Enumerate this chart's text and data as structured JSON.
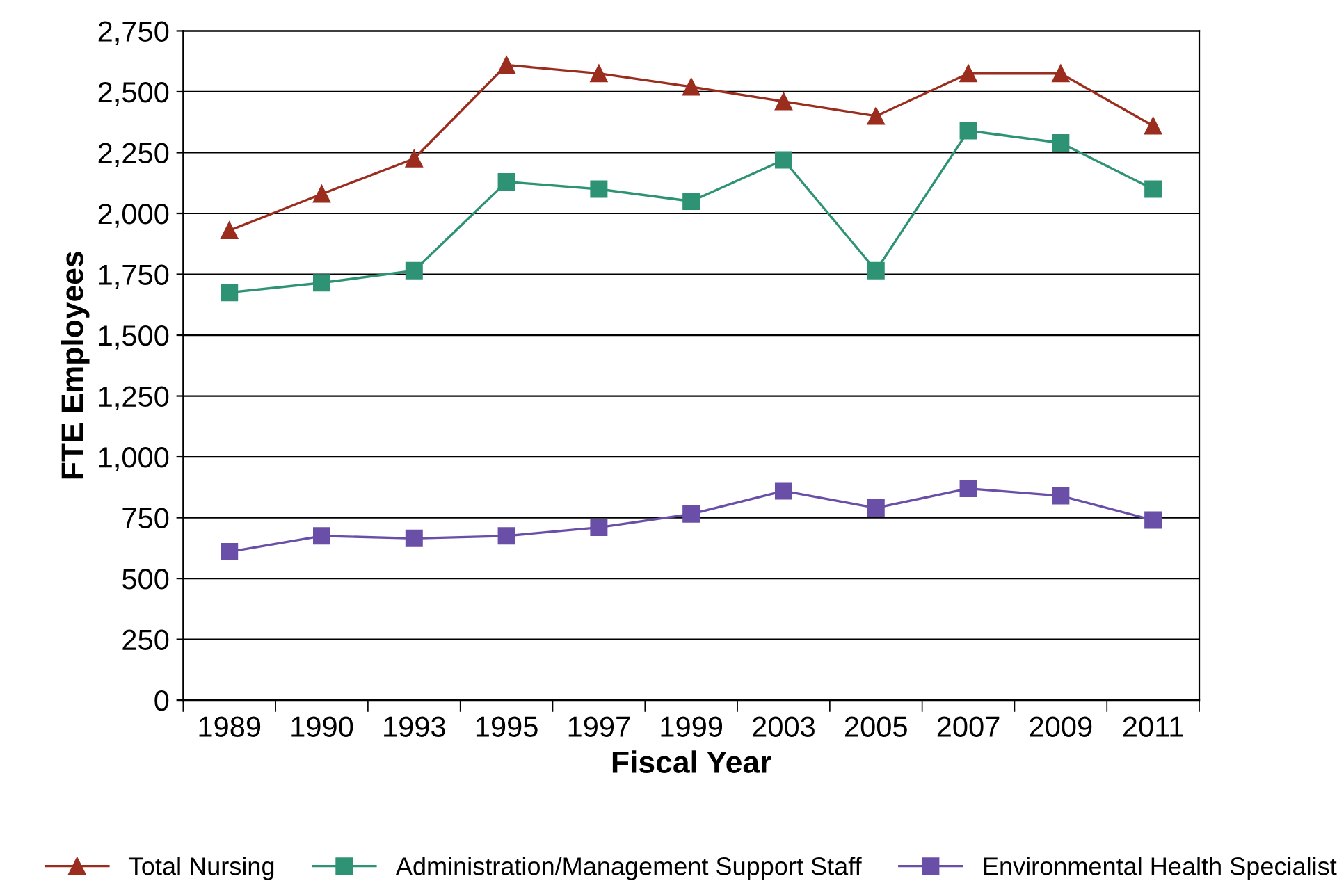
{
  "chart_data": {
    "type": "line",
    "xlabel": "Fiscal Year",
    "ylabel": "FTE Employees",
    "categories": [
      "1989",
      "1990",
      "1993",
      "1995",
      "1997",
      "1999",
      "2003",
      "2005",
      "2007",
      "2009",
      "2011"
    ],
    "series": [
      {
        "name": "Total Nursing",
        "color": "#9b2d1f",
        "marker": "triangle",
        "values": [
          1930,
          2080,
          2225,
          2610,
          2575,
          2520,
          2460,
          2400,
          2575,
          2575,
          2360
        ]
      },
      {
        "name": "Administration/Management Support Staff",
        "color": "#2e9375",
        "marker": "square",
        "values": [
          1675,
          1715,
          1765,
          2130,
          2100,
          2050,
          2220,
          1765,
          2340,
          2290,
          2100
        ]
      },
      {
        "name": "Environmental Health Specialist",
        "color": "#6a4fa8",
        "marker": "square",
        "values": [
          610,
          675,
          665,
          675,
          710,
          765,
          860,
          790,
          870,
          840,
          740
        ]
      }
    ],
    "ylim": [
      0,
      2750
    ],
    "yticks": [
      {
        "value": 0,
        "label": "0"
      },
      {
        "value": 250,
        "label": "250"
      },
      {
        "value": 500,
        "label": "500"
      },
      {
        "value": 750,
        "label": "750"
      },
      {
        "value": 1000,
        "label": "1,000"
      },
      {
        "value": 1250,
        "label": "1,250"
      },
      {
        "value": 1500,
        "label": "1,500"
      },
      {
        "value": 1750,
        "label": "1,750"
      },
      {
        "value": 2000,
        "label": "2,000"
      },
      {
        "value": 2250,
        "label": "2,250"
      },
      {
        "value": 2500,
        "label": "2,500"
      },
      {
        "value": 2750,
        "label": "2,750"
      }
    ],
    "grid": "y",
    "legend": "bottom",
    "line_style": "solid"
  }
}
